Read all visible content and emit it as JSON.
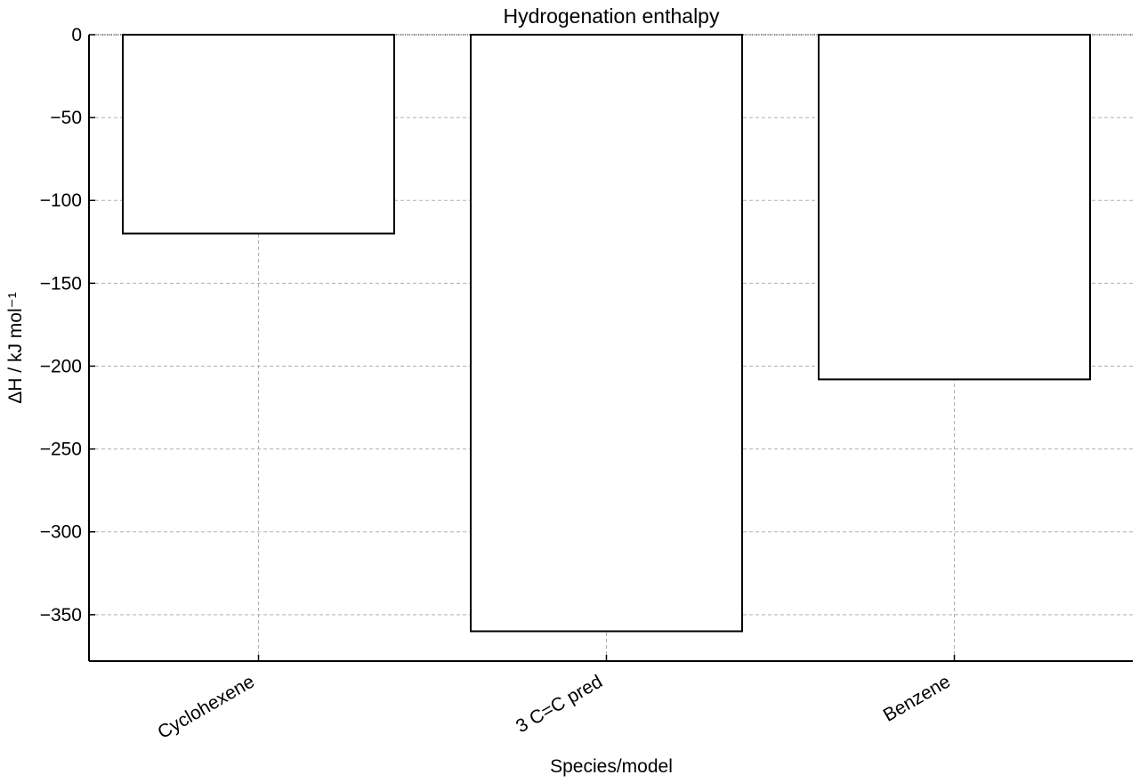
{
  "chart_data": {
    "type": "bar",
    "title": "Hydrogenation enthalpy",
    "xlabel": "Species/model",
    "ylabel": "ΔH / kJ mol⁻¹",
    "categories": [
      "Cyclohexene",
      "3 C=C pred",
      "Benzene"
    ],
    "values": [
      -120,
      -360,
      -208
    ],
    "ylim": [
      -378,
      0
    ],
    "yticks": [
      0,
      -50,
      -100,
      -150,
      -200,
      -250,
      -300,
      -350
    ],
    "ytick_labels": [
      "0",
      "−50",
      "−100",
      "−150",
      "−200",
      "−250",
      "−300",
      "−350"
    ],
    "grid": true,
    "bar_fill": "#ffffff",
    "bar_edge": "#000000"
  }
}
